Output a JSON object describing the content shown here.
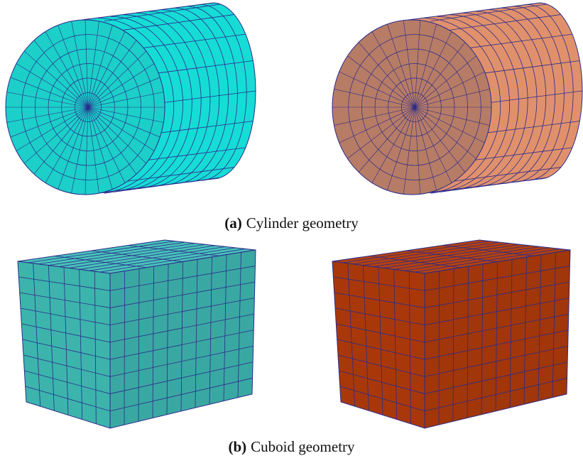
{
  "captions": [
    {
      "label": "(a)",
      "text": "Cylinder geometry"
    },
    {
      "label": "(b)",
      "text": "Cuboid geometry"
    }
  ]
}
